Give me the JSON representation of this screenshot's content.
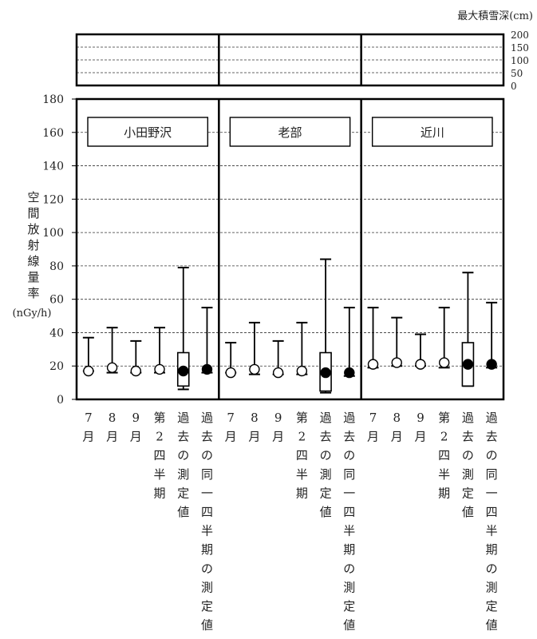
{
  "chart_data": [
    {
      "type": "line",
      "panel": "snow",
      "ylabel": "最大積雪深(cm)",
      "ylim": [
        0,
        200
      ],
      "yticks": [
        "200",
        "150",
        "100",
        "50",
        "0"
      ],
      "tick_values": [
        200,
        150,
        100,
        50,
        0
      ],
      "grid": true
    },
    {
      "type": "scatter",
      "panel": "dose-rate",
      "ylabel_chars": [
        "空",
        "間",
        "放",
        "射",
        "線",
        "量",
        "率"
      ],
      "yunit": "(nGy/h)",
      "ylim": [
        0,
        180
      ],
      "yticks": [
        "0",
        "20",
        "40",
        "60",
        "80",
        "100",
        "120",
        "140",
        "160",
        "180"
      ],
      "tick_values": [
        0,
        20,
        40,
        60,
        80,
        100,
        120,
        140,
        160,
        180
      ],
      "grid": true,
      "categories": [
        {
          "label": [
            "7",
            "月"
          ],
          "kind": "monthly"
        },
        {
          "label": [
            "8",
            "月"
          ],
          "kind": "monthly"
        },
        {
          "label": [
            "9",
            "月"
          ],
          "kind": "monthly"
        },
        {
          "label": [
            "第",
            "2",
            "四",
            "半",
            "期"
          ],
          "kind": "quarter"
        },
        {
          "label": [
            "過",
            "去",
            "の",
            "測",
            "定",
            "値"
          ],
          "kind": "past"
        },
        {
          "label": [
            "過",
            "去",
            "の",
            "同",
            "一",
            "四",
            "半",
            "期",
            "の",
            "測",
            "定",
            "値"
          ],
          "kind": "past_quarter"
        }
      ],
      "stations": [
        {
          "name": "小田野沢",
          "points": [
            {
              "mean": 17,
              "min": 17,
              "max": 37
            },
            {
              "mean": 19,
              "min": 16,
              "max": 43
            },
            {
              "mean": 17,
              "min": 16,
              "max": 35
            },
            {
              "mean": 18,
              "min": 16,
              "max": 43
            },
            {
              "mean": 17,
              "min": 6,
              "max": 79,
              "box": [
                8,
                28
              ]
            },
            {
              "mean": 18,
              "min": 16,
              "max": 55
            }
          ]
        },
        {
          "name": "老部",
          "points": [
            {
              "mean": 16,
              "min": 16,
              "max": 34
            },
            {
              "mean": 18,
              "min": 15,
              "max": 46
            },
            {
              "mean": 16,
              "min": 15,
              "max": 35
            },
            {
              "mean": 17,
              "min": 15,
              "max": 46
            },
            {
              "mean": 16,
              "min": 4,
              "max": 84,
              "box": [
                5,
                28
              ]
            },
            {
              "mean": 16,
              "min": 14,
              "max": 55
            }
          ]
        },
        {
          "name": "近川",
          "points": [
            {
              "mean": 21,
              "min": 19,
              "max": 55
            },
            {
              "mean": 22,
              "min": 20,
              "max": 49
            },
            {
              "mean": 21,
              "min": 20,
              "max": 39
            },
            {
              "mean": 22,
              "min": 19,
              "max": 55
            },
            {
              "mean": 21,
              "min": 8,
              "max": 76,
              "box": [
                8,
                34
              ]
            },
            {
              "mean": 21,
              "min": 19,
              "max": 58
            }
          ]
        }
      ]
    }
  ]
}
